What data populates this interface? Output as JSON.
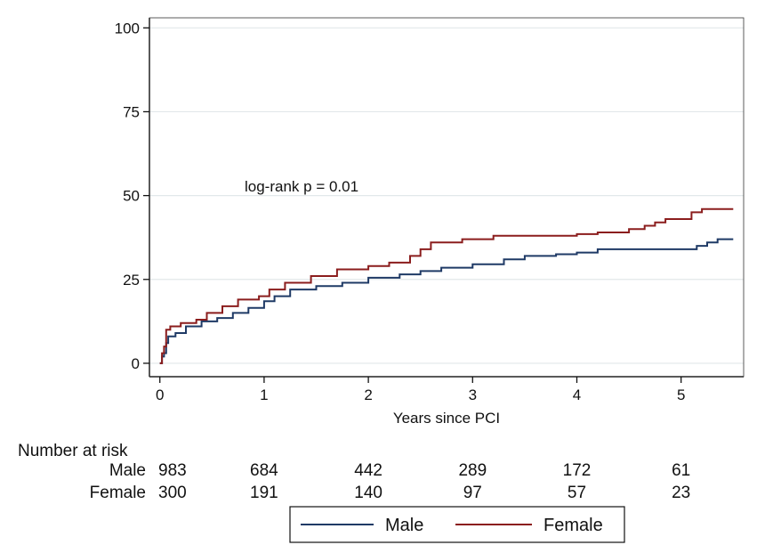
{
  "chart_data": {
    "type": "line",
    "subtype": "kaplan-meier-cumulative-incidence",
    "xlabel": "Years since PCI",
    "ylabel": "",
    "xlim": [
      -0.1,
      5.6
    ],
    "ylim": [
      -4,
      103
    ],
    "xticks": [
      0,
      1,
      2,
      3,
      4,
      5
    ],
    "yticks": [
      0,
      25,
      50,
      75,
      100
    ],
    "grid": true,
    "annotation": "log-rank p = 0.01",
    "colors": {
      "Male": "#1f3a66",
      "Female": "#8b1d1d",
      "grid": "#e2e8ea"
    },
    "series": [
      {
        "name": "Male",
        "steps": [
          [
            0,
            0
          ],
          [
            0.02,
            2
          ],
          [
            0.04,
            3
          ],
          [
            0.06,
            6
          ],
          [
            0.08,
            8
          ],
          [
            0.15,
            9
          ],
          [
            0.25,
            11
          ],
          [
            0.4,
            12.5
          ],
          [
            0.55,
            13.5
          ],
          [
            0.7,
            15
          ],
          [
            0.85,
            16.5
          ],
          [
            1.0,
            18.5
          ],
          [
            1.1,
            20
          ],
          [
            1.25,
            22
          ],
          [
            1.5,
            23
          ],
          [
            1.75,
            24
          ],
          [
            2.0,
            25.5
          ],
          [
            2.3,
            26.5
          ],
          [
            2.5,
            27.5
          ],
          [
            2.7,
            28.5
          ],
          [
            3.0,
            29.5
          ],
          [
            3.3,
            31
          ],
          [
            3.5,
            32
          ],
          [
            3.8,
            32.5
          ],
          [
            4.0,
            33
          ],
          [
            4.2,
            34
          ],
          [
            5.0,
            34
          ],
          [
            5.15,
            35
          ],
          [
            5.25,
            36
          ],
          [
            5.35,
            37
          ],
          [
            5.5,
            37
          ]
        ]
      },
      {
        "name": "Female",
        "steps": [
          [
            0,
            0
          ],
          [
            0.02,
            3
          ],
          [
            0.04,
            5
          ],
          [
            0.06,
            10
          ],
          [
            0.1,
            11
          ],
          [
            0.2,
            12
          ],
          [
            0.35,
            13
          ],
          [
            0.45,
            15
          ],
          [
            0.6,
            17
          ],
          [
            0.75,
            19
          ],
          [
            0.95,
            20
          ],
          [
            1.05,
            22
          ],
          [
            1.2,
            24
          ],
          [
            1.45,
            26
          ],
          [
            1.7,
            28
          ],
          [
            2.0,
            29
          ],
          [
            2.2,
            30
          ],
          [
            2.4,
            32
          ],
          [
            2.5,
            34
          ],
          [
            2.6,
            36
          ],
          [
            2.9,
            37
          ],
          [
            3.2,
            38
          ],
          [
            3.6,
            38
          ],
          [
            4.0,
            38.5
          ],
          [
            4.2,
            39
          ],
          [
            4.5,
            40
          ],
          [
            4.65,
            41
          ],
          [
            4.75,
            42
          ],
          [
            4.85,
            43
          ],
          [
            5.1,
            45
          ],
          [
            5.2,
            46
          ],
          [
            5.5,
            46
          ]
        ]
      }
    ],
    "number_at_risk": {
      "title": "Number at risk",
      "rows": [
        {
          "label": "Male",
          "values": [
            "983",
            "684",
            "442",
            "289",
            "172",
            "61"
          ]
        },
        {
          "label": "Female",
          "values": [
            "300",
            "191",
            "140",
            "97",
            "57",
            "23"
          ]
        }
      ]
    },
    "legend": {
      "position": "bottom",
      "items": [
        "Male",
        "Female"
      ]
    }
  }
}
